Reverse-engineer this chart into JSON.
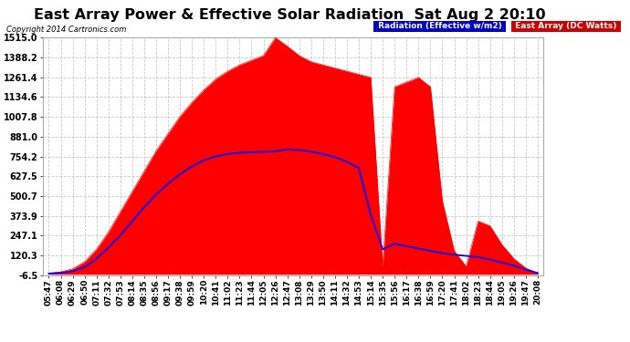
{
  "title": "East Array Power & Effective Solar Radiation  Sat Aug 2 20:10",
  "copyright": "Copyright 2014 Cartronics.com",
  "legend_radiation": "Radiation (Effective w/m2)",
  "legend_east": "East Array (DC Watts)",
  "background_color": "#ffffff",
  "plot_bg_color": "#ffffff",
  "grid_color": "#c8c8c8",
  "yticks": [
    -6.5,
    120.3,
    247.1,
    373.9,
    500.7,
    627.5,
    754.2,
    881.0,
    1007.8,
    1134.6,
    1261.4,
    1388.2,
    1515.0
  ],
  "ymin": -6.5,
  "ymax": 1515.0,
  "fill_color": "#ff0000",
  "line_color": "#0000ff",
  "title_fontsize": 11.5,
  "tick_fontsize": 7,
  "x_labels": [
    "05:47",
    "06:08",
    "06:29",
    "06:50",
    "07:11",
    "07:32",
    "07:53",
    "08:14",
    "08:35",
    "08:56",
    "09:17",
    "09:38",
    "09:59",
    "10:20",
    "10:41",
    "11:02",
    "11:23",
    "11:44",
    "12:05",
    "12:26",
    "12:47",
    "13:08",
    "13:29",
    "13:50",
    "14:11",
    "14:32",
    "14:53",
    "15:14",
    "15:35",
    "15:56",
    "16:17",
    "16:38",
    "16:59",
    "17:20",
    "17:41",
    "18:02",
    "18:23",
    "18:44",
    "19:05",
    "19:26",
    "19:47",
    "20:08"
  ],
  "east_power": [
    5,
    15,
    35,
    80,
    160,
    270,
    400,
    530,
    660,
    790,
    900,
    1010,
    1100,
    1180,
    1250,
    1300,
    1340,
    1370,
    1400,
    1515,
    1460,
    1400,
    1360,
    1340,
    1320,
    1300,
    1280,
    1260,
    50,
    1200,
    1230,
    1260,
    1200,
    470,
    150,
    50,
    340,
    310,
    190,
    100,
    40,
    8
  ],
  "radiation": [
    5,
    10,
    20,
    45,
    100,
    170,
    250,
    340,
    430,
    510,
    580,
    640,
    690,
    730,
    755,
    770,
    778,
    782,
    785,
    787,
    800,
    795,
    785,
    770,
    750,
    720,
    680,
    380,
    160,
    195,
    180,
    165,
    150,
    135,
    125,
    118,
    110,
    95,
    75,
    55,
    30,
    8
  ]
}
